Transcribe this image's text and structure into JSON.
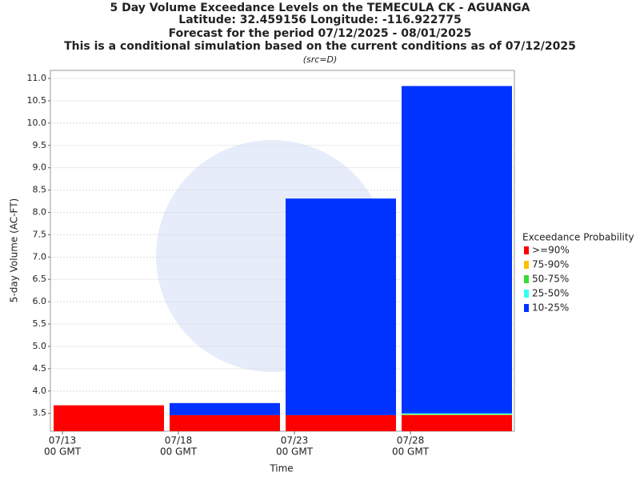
{
  "chart_data": {
    "type": "range-bar",
    "title": "5 Day Volume Exceedance Levels on the TEMECULA CK - AGUANGA",
    "subtitles": [
      "Latitude: 32.459156 Longitude: -116.922775",
      "Forecast for the period 07/12/2025 - 08/01/2025",
      "This is a conditional simulation based on the current conditions as of 07/12/2025"
    ],
    "source_note": "(src=D)",
    "x_label": "Time",
    "y_label": "5-day Volume (AC-FT)",
    "categories": [
      "07/13",
      "07/18",
      "07/23",
      "07/28"
    ],
    "category_suffix": "00 GMT",
    "legend_title": "Exceedance Probability",
    "series": [
      {
        "name": ">=90%",
        "color": "#ff0000",
        "values": [
          3.68,
          3.46,
          3.46,
          3.46
        ]
      },
      {
        "name": "75-90%",
        "color": "#ffc000",
        "values": [
          3.68,
          3.46,
          3.46,
          3.47
        ]
      },
      {
        "name": "50-75%",
        "color": "#33dd33",
        "values": [
          3.68,
          3.46,
          3.46,
          3.48
        ]
      },
      {
        "name": "25-50%",
        "color": "#33ffee",
        "values": [
          3.68,
          3.46,
          3.46,
          3.5
        ]
      },
      {
        "name": "10-25%",
        "color": "#0033ff",
        "values": [
          3.68,
          3.73,
          8.31,
          10.83
        ]
      }
    ],
    "ylim": [
      3.1,
      11.18
    ],
    "yticks": [
      3.5,
      {
        "value": 4,
        "label": "4.0"
      },
      4.5,
      {
        "value": 5,
        "label": "5.0"
      },
      5.5,
      {
        "value": 6,
        "label": "6.0"
      },
      6.5,
      {
        "value": 7,
        "label": "7.0"
      },
      7.5,
      {
        "value": 8,
        "label": "8.0"
      },
      8.5,
      {
        "value": 9,
        "label": "9.0"
      },
      9.5,
      {
        "value": 10,
        "label": "10.0"
      },
      10.5,
      {
        "value": 11,
        "label": "11.0"
      }
    ],
    "grid": true
  }
}
